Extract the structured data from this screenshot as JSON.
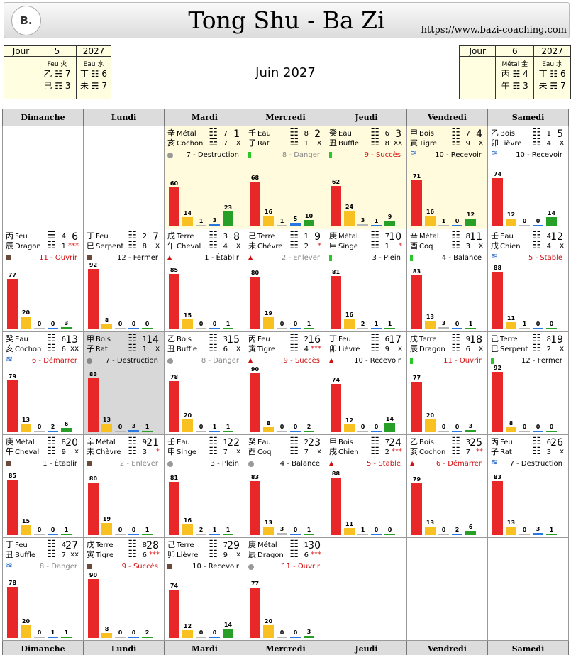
{
  "header": {
    "logo": "B.",
    "title": "Tong Shu - Ba Zi",
    "url": "https://www.bazi-coaching.com"
  },
  "left_pillars": {
    "label": "Jour",
    "day": "5",
    "year": "2027",
    "month_el": "Feu 火",
    "year_el": "Eau 水",
    "mrow1": "乙 ☵ 7",
    "mrow2": "巳 ☶ 3",
    "yrow1": "丁 ☷ 6",
    "yrow2": "未 ☴ 7"
  },
  "right_pillars": {
    "label": "Jour",
    "day": "6",
    "year": "2027",
    "month_el": "Métal 金",
    "year_el": "Eau 水",
    "mrow1": "丙 ☵ 4",
    "mrow2": "午 ☶ 3",
    "yrow1": "丁 ☷ 6",
    "yrow2": "未 ☴ 7"
  },
  "month_title": "Juin 2027",
  "weekdays": [
    "Dimanche",
    "Lundi",
    "Mardi",
    "Mercredi",
    "Jeudi",
    "Vendredi",
    "Samedi"
  ],
  "colors": {
    "red": "#e82828",
    "yellow": "#f8c020",
    "grey": "#b8b8b8",
    "blue": "#2878e0",
    "green": "#28a028",
    "current_month": "#fffbdc",
    "today": "#d8d8d8"
  },
  "days": [
    {
      "d": "1",
      "hs": "辛",
      "el": "Métal",
      "eb": "亥",
      "an": "Cochon",
      "hx1": "☷",
      "hx2": "☲",
      "n1": "7",
      "n2": "7",
      "mk": "x",
      "ind": "dot",
      "indc": "#999",
      "lab": "7 - Destruction",
      "labc": "#000",
      "bars": [
        60,
        14,
        1,
        3,
        23
      ],
      "row": 0,
      "col": 2,
      "cur": true
    },
    {
      "d": "2",
      "hs": "壬",
      "el": "Eau",
      "eb": "子",
      "an": "Rat",
      "hx1": "☷",
      "hx2": "☳",
      "n1": "8",
      "n2": "1",
      "mk": "x",
      "ind": "rect",
      "indc": "#28c828",
      "lab": "8 - Danger",
      "labc": "#888",
      "bars": [
        68,
        16,
        1,
        5,
        10
      ],
      "row": 0,
      "col": 3,
      "cur": true
    },
    {
      "d": "3",
      "hs": "癸",
      "el": "Eau",
      "eb": "丑",
      "an": "Buffle",
      "hx1": "☷",
      "hx2": "☷",
      "n1": "6",
      "n2": "8",
      "mk": "xx",
      "ind": "rect",
      "indc": "#28c828",
      "lab": "9 - Succès",
      "labc": "#d01010",
      "bars": [
        62,
        24,
        3,
        1,
        9
      ],
      "row": 0,
      "col": 4,
      "cur": true
    },
    {
      "d": "4",
      "hs": "甲",
      "el": "Bois",
      "eb": "寅",
      "an": "Tigre",
      "hx1": "☷",
      "hx2": "☷",
      "n1": "7",
      "n2": "9",
      "mk": "x",
      "ind": "wave",
      "indc": "#3070d0",
      "lab": "10 - Recevoir",
      "labc": "#000",
      "bars": [
        71,
        16,
        1,
        0,
        12
      ],
      "row": 0,
      "col": 5,
      "cur": true
    },
    {
      "d": "5",
      "hs": "乙",
      "el": "Bois",
      "eb": "卯",
      "an": "Lièvre",
      "hx1": "☷",
      "hx2": "☷",
      "n1": "1",
      "n2": "4",
      "mk": "x",
      "ind": "wave",
      "indc": "#3070d0",
      "lab": "10 - Recevoir",
      "labc": "#000",
      "bars": [
        74,
        12,
        0,
        0,
        14
      ],
      "row": 0,
      "col": 6,
      "cur": false
    },
    {
      "d": "6",
      "hs": "丙",
      "el": "Feu",
      "eb": "辰",
      "an": "Dragon",
      "hx1": "☰",
      "hx2": "☷",
      "n1": "4",
      "n2": "1",
      "mk": "***",
      "ind": "square",
      "indc": "#6a4a3a",
      "lab": "11 - Ouvrir",
      "labc": "#d01010",
      "bars": [
        77,
        20,
        0,
        0,
        3
      ],
      "row": 1,
      "col": 0,
      "cur": false
    },
    {
      "d": "7",
      "hs": "丁",
      "el": "Feu",
      "eb": "巳",
      "an": "Serpent",
      "hx1": "☷",
      "hx2": "☷",
      "n1": "2",
      "n2": "8",
      "mk": "x",
      "ind": "square",
      "indc": "#6a4a3a",
      "lab": "12 - Fermer",
      "labc": "#000",
      "bars": [
        92,
        8,
        0,
        0,
        0
      ],
      "row": 1,
      "col": 1,
      "cur": false
    },
    {
      "d": "8",
      "hs": "戊",
      "el": "Terre",
      "eb": "午",
      "an": "Cheval",
      "hx1": "☷",
      "hx2": "☷",
      "n1": "3",
      "n2": "4",
      "mk": "x",
      "ind": "tri",
      "indc": "#d01010",
      "lab": "1 - Établir",
      "labc": "#000",
      "bars": [
        85,
        15,
        0,
        0,
        1
      ],
      "row": 1,
      "col": 2,
      "cur": false
    },
    {
      "d": "9",
      "hs": "己",
      "el": "Terre",
      "eb": "未",
      "an": "Chèvre",
      "hx1": "☷",
      "hx2": "☷",
      "n1": "1",
      "n2": "2",
      "mk": "*",
      "ind": "tri",
      "indc": "#d01010",
      "lab": "2 - Enlever",
      "labc": "#888",
      "bars": [
        80,
        19,
        0,
        0,
        1
      ],
      "row": 1,
      "col": 3,
      "cur": false
    },
    {
      "d": "10",
      "hs": "庚",
      "el": "Métal",
      "eb": "申",
      "an": "Singe",
      "hx1": "☷",
      "hx2": "☷",
      "n1": "7",
      "n2": "1",
      "mk": "*",
      "ind": "rect",
      "indc": "#28c828",
      "lab": "3 - Plein",
      "labc": "#000",
      "bars": [
        81,
        16,
        2,
        1,
        1
      ],
      "row": 1,
      "col": 4,
      "cur": false
    },
    {
      "d": "11",
      "hs": "辛",
      "el": "Métal",
      "eb": "酉",
      "an": "Coq",
      "hx1": "☷",
      "hx2": "☷",
      "n1": "8",
      "n2": "3",
      "mk": "x",
      "ind": "rect",
      "indc": "#28c828",
      "lab": "4 - Balance",
      "labc": "#000",
      "bars": [
        83,
        13,
        3,
        0,
        1
      ],
      "row": 1,
      "col": 5,
      "cur": false
    },
    {
      "d": "12",
      "hs": "壬",
      "el": "Eau",
      "eb": "戌",
      "an": "Chien",
      "hx1": "☷",
      "hx2": "☷",
      "n1": "4",
      "n2": "4",
      "mk": "x",
      "ind": "wave",
      "indc": "#3070d0",
      "lab": "5 - Stable",
      "labc": "#d01010",
      "bars": [
        88,
        11,
        1,
        0,
        0
      ],
      "row": 1,
      "col": 6,
      "cur": false
    },
    {
      "d": "13",
      "hs": "癸",
      "el": "Eau",
      "eb": "亥",
      "an": "Cochon",
      "hx1": "☷",
      "hx2": "☷",
      "n1": "6",
      "n2": "6",
      "mk": "xx",
      "ind": "wave",
      "indc": "#3070d0",
      "lab": "6 - Démarrer",
      "labc": "#d01010",
      "bars": [
        79,
        13,
        0,
        2,
        6
      ],
      "row": 2,
      "col": 0,
      "cur": false
    },
    {
      "d": "14",
      "hs": "甲",
      "el": "Bois",
      "eb": "子",
      "an": "Rat",
      "hx1": "☷",
      "hx2": "☷",
      "n1": "1",
      "n2": "1",
      "mk": "x",
      "ind": "dot",
      "indc": "#888",
      "lab": "7 - Destruction",
      "labc": "#000",
      "bars": [
        83,
        13,
        0,
        3,
        1
      ],
      "row": 2,
      "col": 1,
      "cur": false,
      "today": true
    },
    {
      "d": "15",
      "hs": "乙",
      "el": "Bois",
      "eb": "丑",
      "an": "Buffle",
      "hx1": "☷",
      "hx2": "☷",
      "n1": "3",
      "n2": "6",
      "mk": "x",
      "ind": "dot",
      "indc": "#999",
      "lab": "8 - Danger",
      "labc": "#888",
      "bars": [
        78,
        20,
        0,
        1,
        1
      ],
      "row": 2,
      "col": 2,
      "cur": false
    },
    {
      "d": "16",
      "hs": "丙",
      "el": "Feu",
      "eb": "寅",
      "an": "Tigre",
      "hx1": "☷",
      "hx2": "☷",
      "n1": "2",
      "n2": "4",
      "mk": "***",
      "ind": "tri",
      "indc": "#d01010",
      "lab": "9 - Succès",
      "labc": "#d01010",
      "bars": [
        90,
        8,
        0,
        0,
        2
      ],
      "row": 2,
      "col": 3,
      "cur": false
    },
    {
      "d": "17",
      "hs": "丁",
      "el": "Feu",
      "eb": "卯",
      "an": "Lièvre",
      "hx1": "☷",
      "hx2": "☷",
      "n1": "6",
      "n2": "9",
      "mk": "x",
      "ind": "tri",
      "indc": "#d01010",
      "lab": "10 - Recevoir",
      "labc": "#000",
      "bars": [
        74,
        12,
        0,
        0,
        14
      ],
      "row": 2,
      "col": 4,
      "cur": false
    },
    {
      "d": "18",
      "hs": "戊",
      "el": "Terre",
      "eb": "辰",
      "an": "Dragon",
      "hx1": "☷",
      "hx2": "☷",
      "n1": "9",
      "n2": "6",
      "mk": "x",
      "ind": "rect",
      "indc": "#28c828",
      "lab": "11 - Ouvrir",
      "labc": "#d01010",
      "bars": [
        77,
        20,
        0,
        0,
        3
      ],
      "row": 2,
      "col": 5,
      "cur": false
    },
    {
      "d": "19",
      "hs": "己",
      "el": "Terre",
      "eb": "巳",
      "an": "Serpent",
      "hx1": "☷",
      "hx2": "☷",
      "n1": "8",
      "n2": "2",
      "mk": "x",
      "ind": "rect",
      "indc": "#28c828",
      "lab": "12 - Fermer",
      "labc": "#000",
      "bars": [
        92,
        8,
        0,
        0,
        0
      ],
      "row": 2,
      "col": 6,
      "cur": false
    },
    {
      "d": "20",
      "hs": "庚",
      "el": "Métal",
      "eb": "午",
      "an": "Cheval",
      "hx1": "☷",
      "hx2": "☷",
      "n1": "8",
      "n2": "9",
      "mk": "x",
      "ind": "square",
      "indc": "#6a4a3a",
      "lab": "1 - Établir",
      "labc": "#000",
      "bars": [
        85,
        15,
        0,
        0,
        1
      ],
      "row": 3,
      "col": 0,
      "cur": false
    },
    {
      "d": "21",
      "hs": "辛",
      "el": "Métal",
      "eb": "未",
      "an": "Chèvre",
      "hx1": "☷",
      "hx2": "☷",
      "n1": "9",
      "n2": "3",
      "mk": "*",
      "ind": "square",
      "indc": "#6a4a3a",
      "lab": "2 - Enlever",
      "labc": "#888",
      "bars": [
        80,
        19,
        0,
        0,
        1
      ],
      "row": 3,
      "col": 1,
      "cur": false
    },
    {
      "d": "22",
      "hs": "壬",
      "el": "Eau",
      "eb": "申",
      "an": "Singe",
      "hx1": "☷",
      "hx2": "☷",
      "n1": "1",
      "n2": "7",
      "mk": "x",
      "ind": "dot",
      "indc": "#999",
      "lab": "3 - Plein",
      "labc": "#000",
      "bars": [
        81,
        16,
        2,
        1,
        1
      ],
      "row": 3,
      "col": 2,
      "cur": false
    },
    {
      "d": "23",
      "hs": "癸",
      "el": "Eau",
      "eb": "酉",
      "an": "Coq",
      "hx1": "☷",
      "hx2": "☷",
      "n1": "2",
      "n2": "7",
      "mk": "x",
      "ind": "dot",
      "indc": "#999",
      "lab": "4 - Balance",
      "labc": "#000",
      "bars": [
        83,
        13,
        3,
        0,
        1
      ],
      "row": 3,
      "col": 3,
      "cur": false
    },
    {
      "d": "24",
      "hs": "甲",
      "el": "Bois",
      "eb": "戌",
      "an": "Chien",
      "hx1": "☷",
      "hx2": "☷",
      "n1": "7",
      "n2": "2",
      "mk": "***",
      "ind": "tri",
      "indc": "#d01010",
      "lab": "5 - Stable",
      "labc": "#d01010",
      "bars": [
        88,
        11,
        1,
        0,
        0
      ],
      "row": 3,
      "col": 4,
      "cur": false
    },
    {
      "d": "25",
      "hs": "乙",
      "el": "Bois",
      "eb": "亥",
      "an": "Cochon",
      "hx1": "☷",
      "hx2": "☷",
      "n1": "3",
      "n2": "7",
      "mk": "**",
      "ind": "tri",
      "indc": "#d01010",
      "lab": "6 - Démarrer",
      "labc": "#d01010",
      "bars": [
        79,
        13,
        0,
        2,
        6
      ],
      "row": 3,
      "col": 5,
      "cur": false
    },
    {
      "d": "26",
      "hs": "丙",
      "el": "Feu",
      "eb": "子",
      "an": "Rat",
      "hx1": "☷",
      "hx2": "☷",
      "n1": "6",
      "n2": "3",
      "mk": "x",
      "ind": "wave",
      "indc": "#3070d0",
      "lab": "7 - Destruction",
      "labc": "#000",
      "bars": [
        83,
        13,
        0,
        3,
        1
      ],
      "row": 3,
      "col": 6,
      "cur": false
    },
    {
      "d": "27",
      "hs": "丁",
      "el": "Feu",
      "eb": "丑",
      "an": "Buffle",
      "hx1": "☷",
      "hx2": "☷",
      "n1": "4",
      "n2": "7",
      "mk": "xx",
      "ind": "wave",
      "indc": "#3070d0",
      "lab": "8 - Danger",
      "labc": "#888",
      "bars": [
        78,
        20,
        0,
        1,
        1
      ],
      "row": 4,
      "col": 0,
      "cur": false
    },
    {
      "d": "28",
      "hs": "戊",
      "el": "Terre",
      "eb": "寅",
      "an": "Tigre",
      "hx1": "☷",
      "hx2": "☷",
      "n1": "8",
      "n2": "6",
      "mk": "***",
      "ind": "square",
      "indc": "#6a4a3a",
      "lab": "9 - Succès",
      "labc": "#d01010",
      "bars": [
        90,
        8,
        0,
        0,
        2
      ],
      "row": 4,
      "col": 1,
      "cur": false
    },
    {
      "d": "29",
      "hs": "己",
      "el": "Terre",
      "eb": "卯",
      "an": "Lièvre",
      "hx1": "☷",
      "hx2": "☷",
      "n1": "7",
      "n2": "9",
      "mk": "x",
      "ind": "square",
      "indc": "#6a4a3a",
      "lab": "10 - Recevoir",
      "labc": "#000",
      "bars": [
        74,
        12,
        0,
        0,
        14
      ],
      "row": 4,
      "col": 2,
      "cur": false
    },
    {
      "d": "30",
      "hs": "庚",
      "el": "Métal",
      "eb": "辰",
      "an": "Dragon",
      "hx1": "☷",
      "hx2": "☷",
      "n1": "1",
      "n2": "6",
      "mk": "***",
      "ind": "dot",
      "indc": "#999",
      "lab": "11 - Ouvrir",
      "labc": "#d01010",
      "bars": [
        77,
        20,
        0,
        0,
        3
      ],
      "row": 4,
      "col": 3,
      "cur": false
    }
  ]
}
